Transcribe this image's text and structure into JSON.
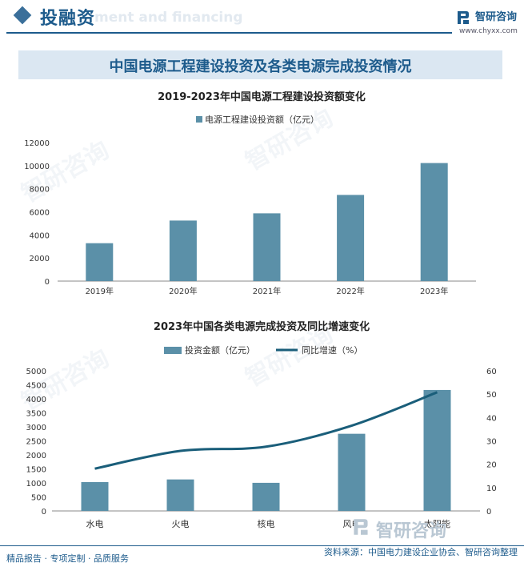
{
  "header": {
    "title": "投融资",
    "subtitle_ghost": "ment and financing"
  },
  "logo": {
    "name": "智研咨询",
    "url": "www.chyxx.com"
  },
  "banner": {
    "title": "中国电源工程建设投资及各类电源完成投资情况"
  },
  "footer": {
    "left": "精品报告 · 专项定制 · 品质服务",
    "right": "资料来源：中国电力建设企业协会、智研咨询整理"
  },
  "watermark": {
    "text": "智研咨询"
  },
  "colors": {
    "bar": "#5b90a8",
    "line": "#1a5e7a",
    "brand": "#1d5b8c"
  },
  "chart_data": [
    {
      "type": "bar",
      "title": "2019-2023年中国电源工程建设投资额变化",
      "categories": [
        "2019年",
        "2020年",
        "2021年",
        "2022年",
        "2023年"
      ],
      "series": [
        {
          "name": "电源工程建设投资额（亿元）",
          "values": [
            3283,
            5244,
            5870,
            7464,
            10225
          ]
        }
      ],
      "ylim": [
        0,
        12000
      ],
      "yticks": [
        "0",
        "2000",
        "4000",
        "6000",
        "8000",
        "10000",
        "12000"
      ],
      "legend": "top-center",
      "grid": false
    },
    {
      "type": "bar",
      "title": "2023年中国各类电源完成投资及同比增速变化",
      "categories": [
        "水电",
        "火电",
        "核电",
        "风电",
        "太阳能"
      ],
      "series": [
        {
          "name": "投资金额（亿元）",
          "kind": "bar",
          "axis": "left",
          "values": [
            1029,
            1124,
            1003,
            2753,
            4316
          ]
        },
        {
          "name": "同比增速（%）",
          "kind": "line",
          "axis": "right",
          "values": [
            18.1,
            25.7,
            27.5,
            36.5,
            50.8
          ]
        }
      ],
      "ylim": [
        0,
        5000
      ],
      "yticks": [
        "0",
        "500",
        "1000",
        "1500",
        "2000",
        "2500",
        "3000",
        "3500",
        "4000",
        "4500",
        "5000"
      ],
      "y2lim": [
        0,
        60
      ],
      "y2ticks": [
        "0",
        "10",
        "20",
        "30",
        "40",
        "50",
        "60"
      ],
      "legend": "top-center",
      "grid": false
    }
  ]
}
